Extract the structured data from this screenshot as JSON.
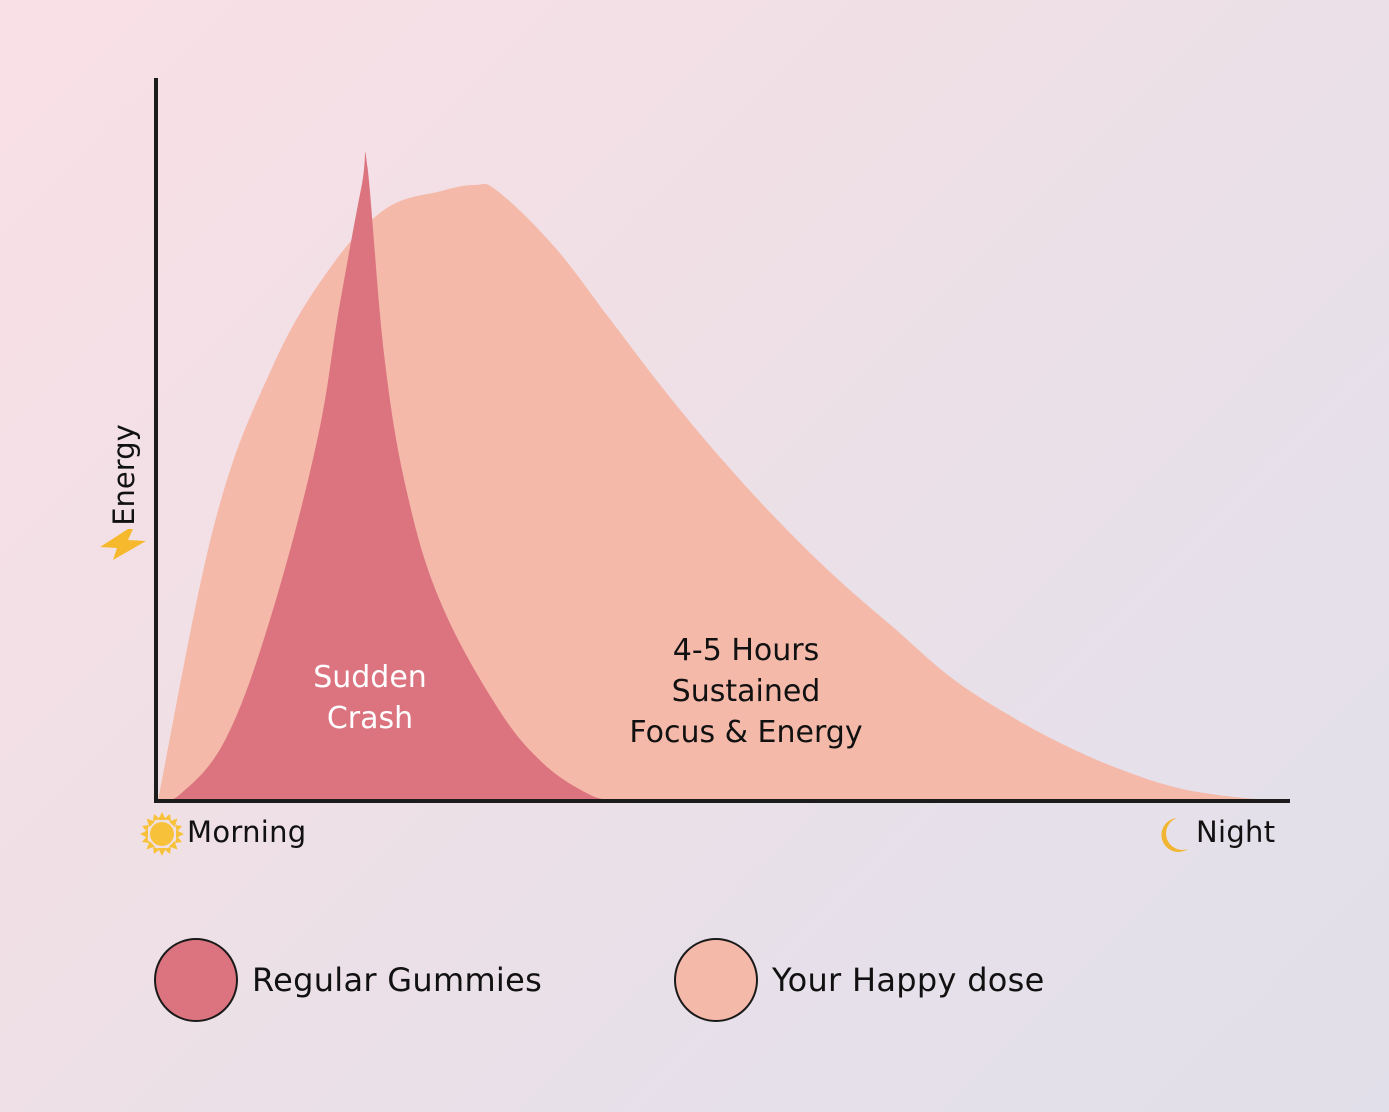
{
  "chart_data": {
    "type": "area",
    "title": "",
    "xlabel_start": "Morning",
    "xlabel_end": "Night",
    "ylabel": "Energy",
    "x_range": [
      "Morning",
      "Night"
    ],
    "grid": false,
    "legend_position": "bottom",
    "series": [
      {
        "name": "Your Happy dose",
        "color": "#f4b9a9",
        "x": [
          0,
          0.05,
          0.1,
          0.15,
          0.2,
          0.25,
          0.28,
          0.3,
          0.35,
          0.4,
          0.45,
          0.5,
          0.55,
          0.6,
          0.65,
          0.7,
          0.75,
          0.8,
          0.85,
          0.9,
          0.95,
          0.98,
          1.0
        ],
        "values": [
          0,
          0.45,
          0.7,
          0.86,
          0.96,
          0.99,
          1.0,
          0.99,
          0.9,
          0.78,
          0.66,
          0.55,
          0.45,
          0.36,
          0.28,
          0.2,
          0.14,
          0.09,
          0.05,
          0.02,
          0.005,
          0.001,
          0
        ]
      },
      {
        "name": "Regular Gummies",
        "color": "#dc7480",
        "x": [
          0,
          0.02,
          0.06,
          0.1,
          0.14,
          0.16,
          0.18,
          0.185,
          0.2,
          0.22,
          0.25,
          0.3,
          0.34,
          0.38,
          0.4
        ],
        "values": [
          0,
          0.01,
          0.1,
          0.3,
          0.58,
          0.8,
          1.0,
          1.03,
          0.72,
          0.5,
          0.32,
          0.15,
          0.06,
          0.01,
          0
        ]
      }
    ],
    "annotations": [
      {
        "id": "crash",
        "lines": [
          "Sudden",
          "Crash"
        ],
        "color": "#ffffff"
      },
      {
        "id": "sustained",
        "lines": [
          "4-5 Hours",
          "Sustained",
          "Focus & Energy"
        ],
        "color": "#111111"
      }
    ],
    "legend": [
      {
        "label": "Regular Gummies",
        "color": "#dc7480"
      },
      {
        "label": "Your Happy dose",
        "color": "#f4b9a9"
      }
    ],
    "icons": {
      "morning": "sun-icon",
      "night": "moon-icon",
      "energy": "lightning-bolt-icon"
    },
    "colors": {
      "axis": "#1c1c1c",
      "sun": "#f7c23a",
      "moon": "#f2b531",
      "bolt": "#f6b92d"
    }
  }
}
